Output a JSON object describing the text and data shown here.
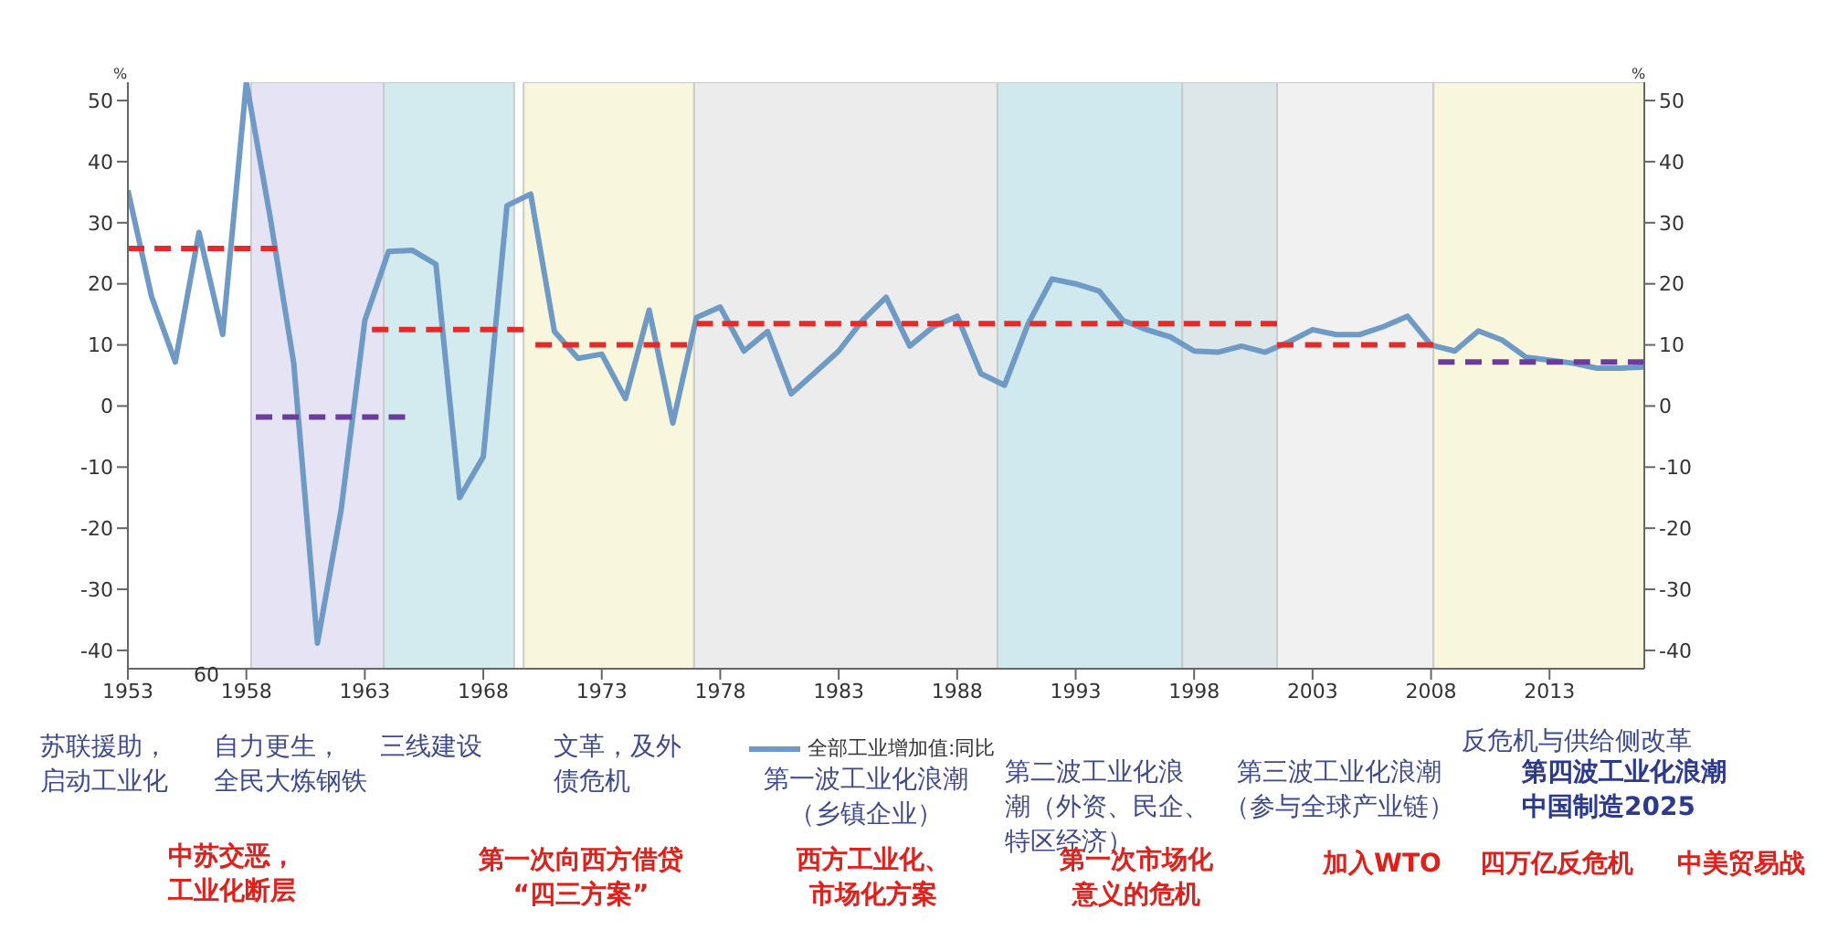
{
  "chart_data": {
    "type": "line",
    "ylabel": "%",
    "y2label": "%",
    "xlim": [
      1953,
      2017
    ],
    "xticks": [
      1953,
      1958,
      1963,
      1968,
      1973,
      1978,
      1983,
      1988,
      1993,
      1998,
      2003,
      2008,
      2013
    ],
    "ylim": [
      -43,
      53
    ],
    "yticks": [
      -40,
      -30,
      -20,
      -10,
      0,
      10,
      20,
      30,
      40,
      50
    ],
    "y2lim": [
      -43,
      53
    ],
    "y2ticks": [
      -40,
      -30,
      -20,
      -10,
      0,
      10,
      20,
      30,
      40,
      50
    ],
    "marker": "none",
    "legend": "bottom",
    "grid": false,
    "series": [
      {
        "name": "全部工业增加值:同比",
        "color": "#6f9ac6",
        "x": [
          1953,
          1954,
          1955,
          1956,
          1957,
          1958,
          1959,
          1960,
          1961,
          1962,
          1963,
          1964,
          1965,
          1966,
          1967,
          1968,
          1969,
          1970,
          1971,
          1972,
          1973,
          1974,
          1975,
          1976,
          1977,
          1978,
          1979,
          1980,
          1981,
          1982,
          1983,
          1984,
          1985,
          1986,
          1987,
          1988,
          1989,
          1990,
          1991,
          1992,
          1993,
          1994,
          1995,
          1996,
          1997,
          1998,
          1999,
          2000,
          2001,
          2002,
          2003,
          2004,
          2005,
          2006,
          2007,
          2008,
          2009,
          2010,
          2011,
          2012,
          2013,
          2014,
          2015,
          2016,
          2017
        ],
        "values": [
          35.3,
          17.9,
          7.2,
          28.4,
          11.7,
          53,
          31,
          7,
          -38.8,
          -17,
          14,
          25.3,
          25.5,
          23.2,
          -15,
          -8.3,
          32.8,
          34.7,
          12.2,
          7.8,
          8.5,
          1.2,
          15.7,
          -2.8,
          14.5,
          16.2,
          9,
          12.2,
          2,
          5.5,
          9,
          14,
          17.8,
          9.8,
          13,
          14.7,
          5.3,
          3.4,
          13.5,
          20.8,
          20,
          18.8,
          14,
          12.5,
          11.3,
          9,
          8.8,
          9.8,
          8.8,
          10.5,
          12.5,
          11.7,
          11.7,
          13,
          14.7,
          10,
          9,
          12.3,
          10.8,
          8,
          7.5,
          7,
          6.2,
          6.2,
          6.4
        ]
      },
      {
        "color": "#e32b2b",
        "line_style": "dashed",
        "x": [
          1953,
          1959.3
        ],
        "values": [
          25.8,
          25.8
        ]
      },
      {
        "color": "#6a3d9a",
        "line_style": "dashed",
        "x": [
          1958.4,
          1964.7
        ],
        "values": [
          -1.8,
          -1.8
        ]
      },
      {
        "color": "#e32b2b",
        "line_style": "dashed",
        "x": [
          1963.3,
          1969.7
        ],
        "values": [
          12.5,
          12.5
        ]
      },
      {
        "color": "#e32b2b",
        "line_style": "dashed",
        "x": [
          1970.2,
          1976.6
        ],
        "values": [
          10,
          10
        ]
      },
      {
        "color": "#e32b2b",
        "line_style": "dashed",
        "x": [
          1977,
          2001.5
        ],
        "values": [
          13.5,
          13.5
        ]
      },
      {
        "color": "#e32b2b",
        "line_style": "dashed",
        "x": [
          2001.5,
          2008.1
        ],
        "values": [
          10,
          10
        ]
      },
      {
        "color": "#6a3d9a",
        "line_style": "dashed",
        "x": [
          2008.3,
          2017
        ],
        "values": [
          7.2,
          7.2
        ]
      }
    ],
    "bands": [
      {
        "axis": "x",
        "from": 1958.2,
        "to": 1963.8,
        "color": "#e6e4f4"
      },
      {
        "axis": "x",
        "from": 1963.8,
        "to": 1969.3,
        "color": "#d3ebef"
      },
      {
        "axis": "x",
        "from": 1969.7,
        "to": 1976.9,
        "color": "#f8f6dc"
      },
      {
        "axis": "x",
        "from": 1976.9,
        "to": 1989.7,
        "color": "#ececec"
      },
      {
        "axis": "x",
        "from": 1989.7,
        "to": 1997.5,
        "color": "#cfe9ee"
      },
      {
        "axis": "x",
        "from": 1997.5,
        "to": 2001.5,
        "color": "#dde6e9"
      },
      {
        "axis": "x",
        "from": 2001.5,
        "to": 2008.1,
        "color": "#f1f1f1"
      },
      {
        "axis": "x",
        "from": 2008.1,
        "to": 2017,
        "color": "#f8f6dc"
      }
    ],
    "annotations": [
      "苏联援助，启动工业化",
      "自力更生，全民大炼钢铁",
      "三线建设",
      "文革，及外债危机",
      "第一波工业化浪潮（乡镇企业）",
      "第二波工业化浪潮（外资、民企、特区经济）",
      "第三波工业化浪潮（参与全球产业链）",
      "反危机与供给侧改革",
      "第四波工业化浪潮中国制造2025",
      "中苏交恶，工业化断层",
      "第一次向西方借贷“四三方案”",
      "西方工业化、市场化方案",
      "第一次市场化意义的危机",
      "加入WTO",
      "四万亿反危机",
      "中美贸易战",
      "60"
    ]
  }
}
